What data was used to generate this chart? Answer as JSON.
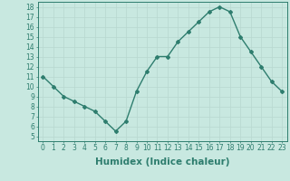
{
  "x": [
    0,
    1,
    2,
    3,
    4,
    5,
    6,
    7,
    8,
    9,
    10,
    11,
    12,
    13,
    14,
    15,
    16,
    17,
    18,
    19,
    20,
    21,
    22,
    23
  ],
  "y": [
    11,
    10,
    9,
    8.5,
    8,
    7.5,
    6.5,
    5.5,
    6.5,
    9.5,
    11.5,
    13,
    13,
    14.5,
    15.5,
    16.5,
    17.5,
    18,
    17.5,
    15,
    13.5,
    12,
    10.5,
    9.5
  ],
  "line_color": "#2e7d6e",
  "marker": "D",
  "marker_size": 2.0,
  "bg_color": "#c8e8e0",
  "grid_color": "#b8d8d0",
  "xlabel": "Humidex (Indice chaleur)",
  "xlim": [
    -0.5,
    23.5
  ],
  "ylim": [
    4.5,
    18.5
  ],
  "yticks": [
    5,
    6,
    7,
    8,
    9,
    10,
    11,
    12,
    13,
    14,
    15,
    16,
    17,
    18
  ],
  "xticks": [
    0,
    1,
    2,
    3,
    4,
    5,
    6,
    7,
    8,
    9,
    10,
    11,
    12,
    13,
    14,
    15,
    16,
    17,
    18,
    19,
    20,
    21,
    22,
    23
  ],
  "tick_label_fontsize": 5.5,
  "xlabel_fontsize": 7.5,
  "line_width": 1.0
}
